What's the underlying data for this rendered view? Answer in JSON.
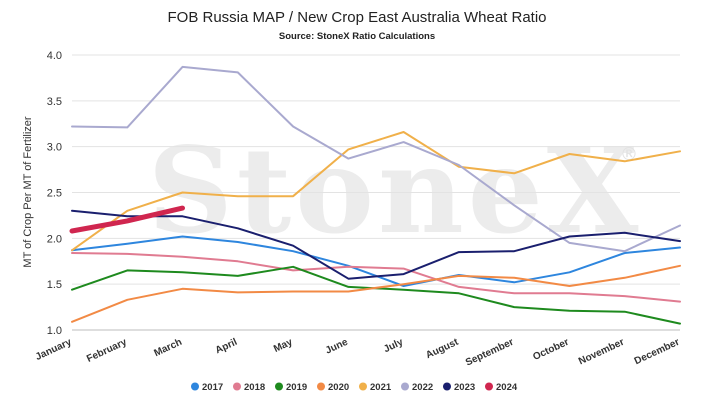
{
  "chart_data": {
    "type": "line",
    "title": "FOB Russia MAP / New Crop East Australia Wheat Ratio",
    "subtitle": "Source: StoneX Ratio Calculations",
    "ylabel": "MT of Crop Per MT of Fertilizer",
    "xlabel": "",
    "watermark": "StoneX",
    "watermark_mark": "®",
    "ylim": [
      1.0,
      4.0
    ],
    "yticks": [
      "1.0",
      "1.5",
      "2.0",
      "2.5",
      "3.0",
      "3.5",
      "4.0"
    ],
    "grid": true,
    "legend_position": "bottom",
    "categories": [
      "January",
      "February",
      "March",
      "April",
      "May",
      "June",
      "July",
      "August",
      "September",
      "October",
      "November",
      "December"
    ],
    "series": [
      {
        "name": "2017",
        "color": "#2e86de",
        "width": 2,
        "values": [
          1.87,
          1.94,
          2.02,
          1.96,
          1.86,
          1.7,
          1.48,
          1.6,
          1.52,
          1.63,
          1.84,
          1.9
        ]
      },
      {
        "name": "2018",
        "color": "#e07b91",
        "width": 2,
        "values": [
          1.84,
          1.83,
          1.8,
          1.75,
          1.65,
          1.69,
          1.67,
          1.47,
          1.4,
          1.4,
          1.37,
          1.31
        ]
      },
      {
        "name": "2019",
        "color": "#1e8a1e",
        "width": 2,
        "values": [
          1.44,
          1.65,
          1.63,
          1.59,
          1.69,
          1.47,
          1.44,
          1.4,
          1.25,
          1.21,
          1.2,
          1.07
        ]
      },
      {
        "name": "2020",
        "color": "#f28a45",
        "width": 2,
        "values": [
          1.09,
          1.33,
          1.45,
          1.41,
          1.42,
          1.42,
          1.5,
          1.59,
          1.57,
          1.48,
          1.57,
          1.7
        ]
      },
      {
        "name": "2021",
        "color": "#f0b04a",
        "width": 2,
        "values": [
          1.87,
          2.3,
          2.5,
          2.46,
          2.46,
          2.97,
          3.16,
          2.78,
          2.71,
          2.92,
          2.84,
          2.95
        ]
      },
      {
        "name": "2022",
        "color": "#a9a9cf",
        "width": 2,
        "values": [
          3.22,
          3.21,
          3.87,
          3.81,
          3.22,
          2.87,
          3.05,
          2.8,
          2.36,
          1.95,
          1.86,
          2.14
        ]
      },
      {
        "name": "2023",
        "color": "#1a1f6e",
        "width": 2,
        "values": [
          2.3,
          2.24,
          2.24,
          2.11,
          1.92,
          1.56,
          1.61,
          1.85,
          1.86,
          2.02,
          2.06,
          1.97
        ]
      },
      {
        "name": "2024",
        "color": "#d0264f",
        "width": 5,
        "values": [
          2.08,
          2.19,
          2.33,
          null,
          null,
          null,
          null,
          null,
          null,
          null,
          null,
          null
        ]
      }
    ]
  }
}
